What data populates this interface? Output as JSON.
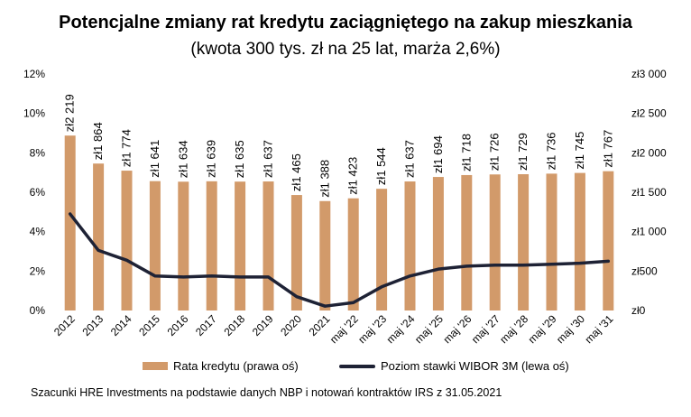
{
  "title": "Potencjalne zmiany rat kredytu zaciągniętego na zakup mieszkania",
  "subtitle": "(kwota 300 tys. zł na 25 lat, marża 2,6%)",
  "source": "Szacunki HRE Investments na podstawie danych NBP i notowań kontraktów IRS z 31.05.2021",
  "chart_data": {
    "type": "bar+line",
    "categories": [
      "2012",
      "2013",
      "2014",
      "2015",
      "2016",
      "2017",
      "2018",
      "2019",
      "2020",
      "2021",
      "maj '22",
      "maj '23",
      "maj '24",
      "maj '25",
      "maj '26",
      "maj '27",
      "maj '28",
      "maj '29",
      "maj '30",
      "maj '31"
    ],
    "series": [
      {
        "name": "Rata kredytu (prawa oś)",
        "type": "bar",
        "axis": "right",
        "color": "#D29A6A",
        "values": [
          2219,
          1864,
          1774,
          1641,
          1634,
          1639,
          1635,
          1637,
          1465,
          1388,
          1423,
          1544,
          1637,
          1694,
          1718,
          1726,
          1729,
          1736,
          1745,
          1767
        ],
        "labels": [
          "zł2 219",
          "zł1 864",
          "zł1 774",
          "zł1 641",
          "zł1 634",
          "zł1 639",
          "zł1 635",
          "zł1 637",
          "zł1 465",
          "zł1 388",
          "zł1 423",
          "zł1 544",
          "zł1 637",
          "zł1 694",
          "zł1 718",
          "zł1 726",
          "zł1 729",
          "zł1 736",
          "zł1 745",
          "zł1 767"
        ]
      },
      {
        "name": "Poziom stawki WIBOR 3M (lewa oś)",
        "type": "line",
        "axis": "left",
        "color": "#1E2235",
        "values": [
          4.9,
          3.05,
          2.55,
          1.75,
          1.7,
          1.75,
          1.7,
          1.7,
          0.7,
          0.22,
          0.4,
          1.2,
          1.75,
          2.1,
          2.25,
          2.3,
          2.3,
          2.35,
          2.4,
          2.5
        ]
      }
    ],
    "left_axis": {
      "min": 0,
      "max": 12,
      "ticks": [
        0,
        2,
        4,
        6,
        8,
        10,
        12
      ],
      "tick_labels": [
        "0%",
        "2%",
        "4%",
        "6%",
        "8%",
        "10%",
        "12%"
      ]
    },
    "right_axis": {
      "min": 0,
      "max": 3000,
      "ticks": [
        0,
        500,
        1000,
        1500,
        2000,
        2500,
        3000
      ],
      "tick_labels": [
        "zł0",
        "zł500",
        "zł1 000",
        "zł1 500",
        "zł2 000",
        "zł2 500",
        "zł3 000"
      ]
    },
    "legend": [
      "Rata kredytu (prawa oś)",
      "Poziom stawki WIBOR 3M (lewa oś)"
    ]
  }
}
